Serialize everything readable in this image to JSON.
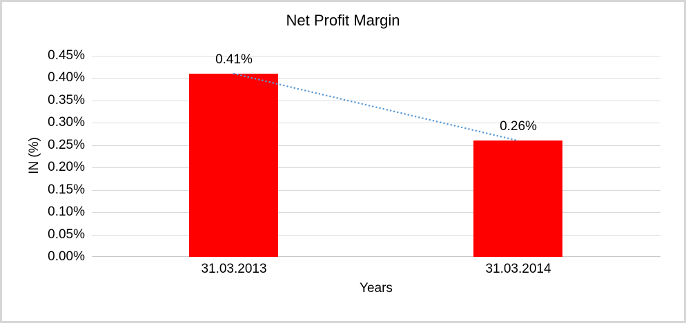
{
  "chart": {
    "title": "Net Profit Margin",
    "y_axis_title": "IN (%)",
    "x_axis_title": "Years"
  },
  "chart_data": {
    "type": "bar",
    "title": "Net Profit Margin",
    "xlabel": "Years",
    "ylabel": "IN (%)",
    "categories": [
      "31.03.2013",
      "31.03.2014"
    ],
    "values": [
      0.41,
      0.26
    ],
    "data_labels": [
      "0.41%",
      "0.26%"
    ],
    "ylim": [
      0,
      0.45
    ],
    "ytick_step": 0.05,
    "ytick_labels": [
      "0.45%",
      "0.40%",
      "0.35%",
      "0.30%",
      "0.25%",
      "0.20%",
      "0.15%",
      "0.10%",
      "0.05%",
      "0.00%"
    ],
    "grid": true,
    "legend": "none",
    "bar_color": "#ff0000",
    "trendline": {
      "type": "linear",
      "style": "dotted",
      "color": "#5b9bd5"
    }
  },
  "colors": {
    "bar": "#ff0000",
    "trendline": "#5b9bd5",
    "gridline": "#d9d9d9",
    "frame_border": "#d6d6d6",
    "text": "#000000"
  }
}
